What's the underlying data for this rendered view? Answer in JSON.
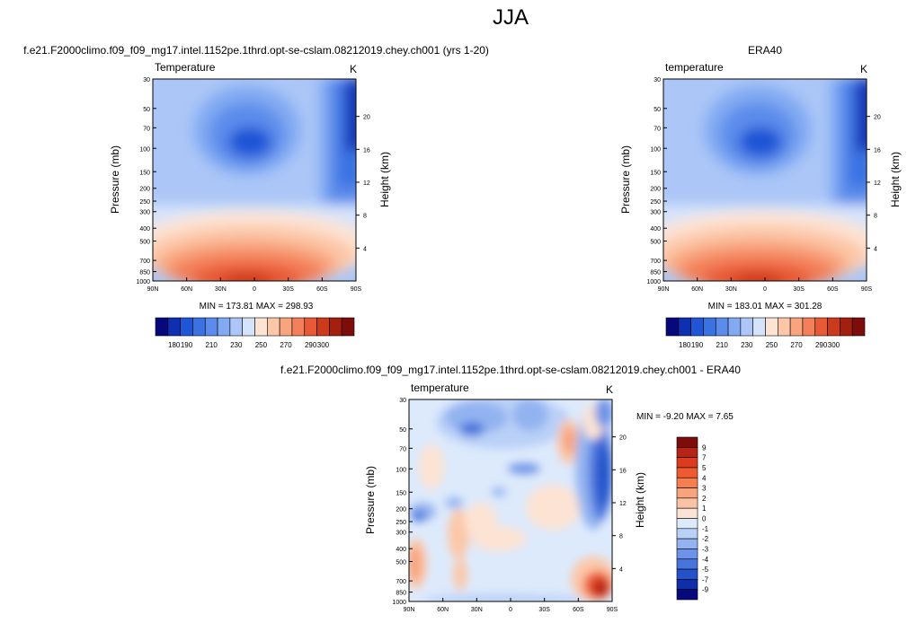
{
  "page_title": "JJA",
  "panels": [
    {
      "id": "model",
      "title": "f.e21.F2000climo.f09_f09_mg17.intel.1152pe.1thrd.opt-se-cslam.08212019.chey.ch001 (yrs 1-20)",
      "left_label": "Temperature",
      "units": "K",
      "stats": "MIN = 173.81   MAX = 298.93",
      "ylabel": "Pressure (mb)",
      "y2label": "Height (km)"
    },
    {
      "id": "obs",
      "title": "ERA40",
      "left_label": "temperature",
      "units": "K",
      "stats": "MIN = 183.01   MAX = 301.28",
      "ylabel": "Pressure (mb)",
      "y2label": "Height (km)"
    },
    {
      "id": "diff",
      "title": "f.e21.F2000climo.f09_f09_mg17.intel.1152pe.1thrd.opt-se-cslam.08212019.chey.ch001 - ERA40",
      "left_label": "temperature",
      "units": "K",
      "stats": "MIN =  -9.20   MAX =   7.65",
      "ylabel": "Pressure (mb)",
      "y2label": "Height (km)"
    }
  ],
  "chart_data": [
    {
      "type": "heatmap",
      "name": "model",
      "x_ticks": [
        "90N",
        "60N",
        "30N",
        "0",
        "30S",
        "60S",
        "90S"
      ],
      "pressure_ticks": [
        "30",
        "50",
        "70",
        "100",
        "150",
        "200",
        "250",
        "300",
        "400",
        "500",
        "700",
        "850",
        "1000"
      ],
      "height_ticks": [
        "20",
        "16",
        "12",
        "8",
        "4"
      ],
      "colorbar_labels": [
        "180",
        "190",
        "210",
        "230",
        "250",
        "270",
        "290",
        "300"
      ],
      "min": 173.81,
      "max": 298.93
    },
    {
      "type": "heatmap",
      "name": "obs",
      "x_ticks": [
        "90N",
        "60N",
        "30N",
        "0",
        "30S",
        "60S",
        "90S"
      ],
      "pressure_ticks": [
        "30",
        "50",
        "70",
        "100",
        "150",
        "200",
        "250",
        "300",
        "400",
        "500",
        "700",
        "850",
        "1000"
      ],
      "height_ticks": [
        "20",
        "16",
        "12",
        "8",
        "4"
      ],
      "colorbar_labels": [
        "180",
        "190",
        "210",
        "230",
        "250",
        "270",
        "290",
        "300"
      ],
      "min": 183.01,
      "max": 301.28
    },
    {
      "type": "heatmap",
      "name": "difference",
      "x_ticks": [
        "90N",
        "60N",
        "30N",
        "0",
        "30S",
        "60S",
        "90S"
      ],
      "pressure_ticks": [
        "30",
        "50",
        "70",
        "100",
        "150",
        "200",
        "250",
        "300",
        "400",
        "500",
        "700",
        "850",
        "1000"
      ],
      "height_ticks": [
        "20",
        "16",
        "12",
        "8",
        "4"
      ],
      "colorbar_labels": [
        "9",
        "7",
        "5",
        "4",
        "3",
        "2",
        "1",
        "0",
        "-1",
        "-2",
        "-3",
        "-4",
        "-5",
        "-7",
        "-9"
      ],
      "min": -9.2,
      "max": 7.65
    }
  ],
  "colors": {
    "abs_scale": [
      "#08087d",
      "#0d2fb0",
      "#1f55d6",
      "#3a72e2",
      "#5b8ceb",
      "#82aaf2",
      "#abc6f7",
      "#d6e4fb",
      "#fde3d3",
      "#fcc7a8",
      "#f8a57f",
      "#f3805a",
      "#e85a36",
      "#cc3a1c",
      "#a3200f",
      "#7d0d0a"
    ],
    "diff_scale": [
      "#7d0d0a",
      "#b72315",
      "#dc3b1e",
      "#ee5b30",
      "#f57f51",
      "#f7a37e",
      "#fbc3a6",
      "#fde3d3",
      "#ddeafc",
      "#b9d0f7",
      "#93b3f0",
      "#6d93e8",
      "#4874dd",
      "#2452c9",
      "#0e2fa8",
      "#08087d"
    ]
  }
}
